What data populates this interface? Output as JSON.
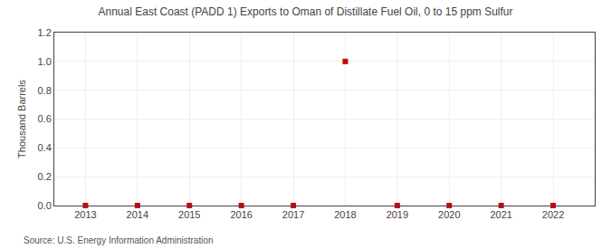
{
  "chart_data": {
    "type": "scatter",
    "title": "Annual East Coast (PADD 1) Exports to Oman of Distillate Fuel Oil, 0 to 15 ppm Sulfur",
    "ylabel": "Thousand Barrels",
    "source": "Source: U.S. Energy Information Administration",
    "x": [
      2013,
      2014,
      2015,
      2016,
      2017,
      2018,
      2019,
      2020,
      2021,
      2022
    ],
    "values": [
      0,
      0,
      0,
      0,
      0,
      1.0,
      0,
      0,
      0,
      0
    ],
    "color": "#cc0000",
    "marker": "square",
    "xlim": [
      2012.4,
      2022.8
    ],
    "xticks": [
      2013,
      2014,
      2015,
      2016,
      2017,
      2018,
      2019,
      2020,
      2021,
      2022
    ],
    "ylim": [
      0.0,
      1.2
    ],
    "yticks": [
      {
        "value": 0.0,
        "label": "0.0"
      },
      0.2,
      0.4,
      0.6,
      0.8,
      {
        "value": 1.0,
        "label": "1.0"
      },
      1.2
    ],
    "grid": true
  }
}
